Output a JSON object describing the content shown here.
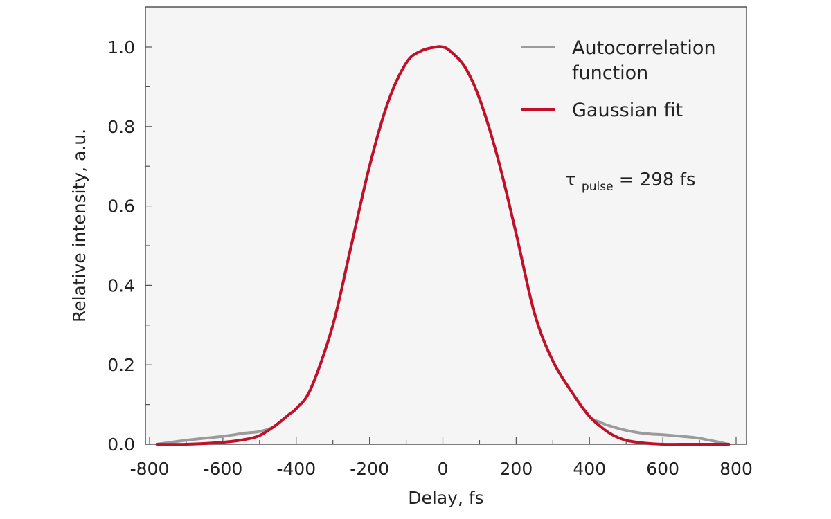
{
  "chart_data": {
    "type": "line",
    "title": "",
    "xlabel": "Delay, fs",
    "ylabel": "Relative intensity, a.u.",
    "xlim": [
      -800,
      800
    ],
    "ylim": [
      0,
      1.1
    ],
    "x_ticks": [
      -800,
      -600,
      -400,
      -200,
      0,
      200,
      400,
      600,
      800
    ],
    "x_tick_labels": [
      "-800",
      "-600",
      "-400",
      "-200",
      "0",
      "200",
      "400",
      "600",
      "800"
    ],
    "y_ticks": [
      0.0,
      0.2,
      0.4,
      0.6,
      0.8,
      1.0
    ],
    "y_tick_labels": [
      "0.0",
      "0.2",
      "0.4",
      "0.6",
      "0.8",
      "1.0"
    ],
    "grid": false,
    "legend_position": "top-right",
    "series": [
      {
        "name": "Autocorrelation function",
        "color": "#9b9b9b",
        "x": [
          -780,
          -700,
          -600,
          -540,
          -500,
          -460,
          -420,
          -400,
          -360,
          -300,
          -250,
          -200,
          -150,
          -100,
          -60,
          -20,
          0,
          20,
          60,
          100,
          150,
          200,
          250,
          300,
          360,
          400,
          430,
          460,
          500,
          550,
          600,
          650,
          700,
          780
        ],
        "y": [
          0.0,
          0.01,
          0.02,
          0.028,
          0.032,
          0.045,
          0.075,
          0.09,
          0.14,
          0.3,
          0.5,
          0.7,
          0.86,
          0.96,
          0.99,
          1.0,
          1.0,
          0.99,
          0.95,
          0.87,
          0.72,
          0.53,
          0.33,
          0.21,
          0.12,
          0.07,
          0.055,
          0.045,
          0.035,
          0.027,
          0.024,
          0.02,
          0.015,
          0.0
        ]
      },
      {
        "name": "Gaussian fit",
        "color": "#c0102a",
        "x": [
          -780,
          -700,
          -600,
          -540,
          -500,
          -460,
          -420,
          -400,
          -360,
          -300,
          -250,
          -200,
          -150,
          -100,
          -60,
          -20,
          0,
          20,
          60,
          100,
          150,
          200,
          250,
          300,
          360,
          400,
          430,
          460,
          500,
          550,
          600,
          650,
          700,
          780
        ],
        "y": [
          0.0,
          0.0,
          0.005,
          0.012,
          0.022,
          0.045,
          0.075,
          0.09,
          0.14,
          0.3,
          0.5,
          0.7,
          0.86,
          0.96,
          0.99,
          1.0,
          1.0,
          0.99,
          0.95,
          0.87,
          0.72,
          0.53,
          0.33,
          0.21,
          0.12,
          0.07,
          0.045,
          0.025,
          0.01,
          0.003,
          0.0,
          0.0,
          0.0,
          0.0
        ]
      }
    ],
    "annotation": {
      "symbol": "τ",
      "subscript": "pulse",
      "text": " = 298 fs"
    }
  }
}
